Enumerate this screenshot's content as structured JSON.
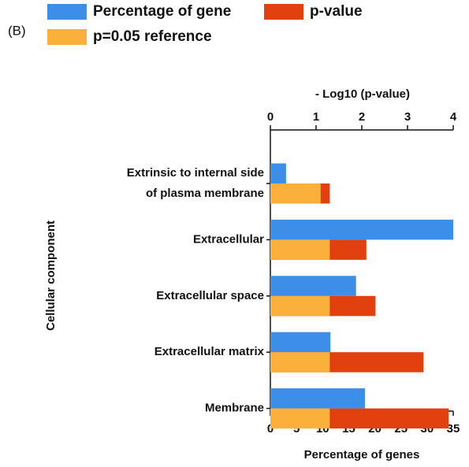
{
  "chart_data": {
    "type": "bar",
    "panel_label": "(B)",
    "categories": [
      "Extrinsic to internal side of plasma membrane",
      "Extracellular",
      "Extracellular space",
      "Extracellular matrix",
      "Membrane"
    ],
    "series": [
      {
        "name": "Percentage of gene",
        "color": "#3d8ee8",
        "axis": "x",
        "values": [
          3.0,
          35,
          16.4,
          11.5,
          18.1
        ]
      },
      {
        "name": "p-value",
        "color": "#e2410f",
        "axis": "x2",
        "values": [
          1.3,
          2.1,
          2.3,
          3.35,
          3.9
        ]
      },
      {
        "name": "p=0.05 reference",
        "color": "#fbb03b",
        "axis": "x2",
        "values": [
          1.1,
          1.3,
          1.3,
          1.3,
          1.3
        ]
      }
    ],
    "xlabel": "Percentage of genes",
    "x2label": "- Log10 (p-value)",
    "ylabel": "Cellular component",
    "xlim": [
      0,
      35
    ],
    "xticks": [
      0,
      5,
      10,
      15,
      20,
      25,
      30,
      35
    ],
    "x2lim": [
      0,
      4
    ],
    "x2ticks": [
      0,
      1,
      2,
      3,
      4
    ]
  }
}
